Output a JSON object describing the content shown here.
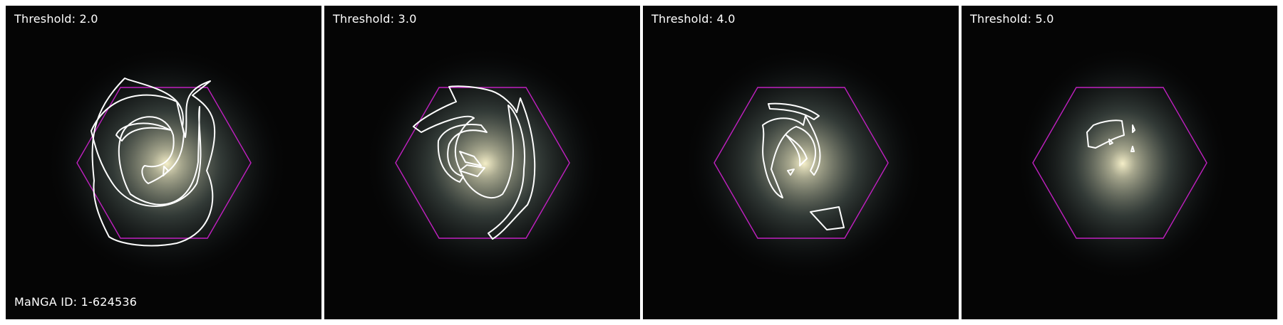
{
  "galaxy": {
    "manga_id_label": "MaNGA ID: 1-624536"
  },
  "colors": {
    "hexagon": "#c020c0",
    "contour": "#ffffff",
    "background": "#050505"
  },
  "panels": [
    {
      "threshold_label": "Threshold: 2.0"
    },
    {
      "threshold_label": "Threshold: 3.0"
    },
    {
      "threshold_label": "Threshold: 4.0"
    },
    {
      "threshold_label": "Threshold: 5.0"
    }
  ]
}
